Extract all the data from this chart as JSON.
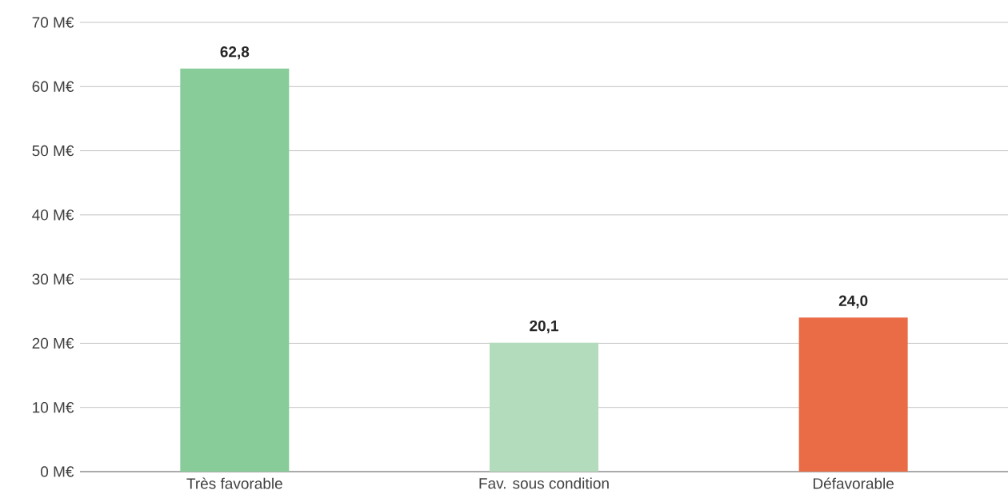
{
  "chart_data": {
    "type": "bar",
    "categories": [
      "Très favorable",
      "Fav. sous condition",
      "Défavorable"
    ],
    "values": [
      62.8,
      20.1,
      24.0
    ],
    "colors": [
      "#88cc99",
      "#b3dcbd",
      "#ea6c47"
    ],
    "value_labels": [
      "62,8",
      "20,1",
      "24,0"
    ],
    "ylim": [
      0,
      70
    ],
    "yticks": [
      {
        "value": 0,
        "label": "0 M€"
      },
      {
        "value": 10,
        "label": "10 M€"
      },
      {
        "value": 20,
        "label": "20 M€"
      },
      {
        "value": 30,
        "label": "30 M€"
      },
      {
        "value": 40,
        "label": "40 M€"
      },
      {
        "value": 50,
        "label": "50 M€"
      },
      {
        "value": 60,
        "label": "60 M€"
      },
      {
        "value": 70,
        "label": "70 M€"
      }
    ],
    "grid": "y"
  }
}
